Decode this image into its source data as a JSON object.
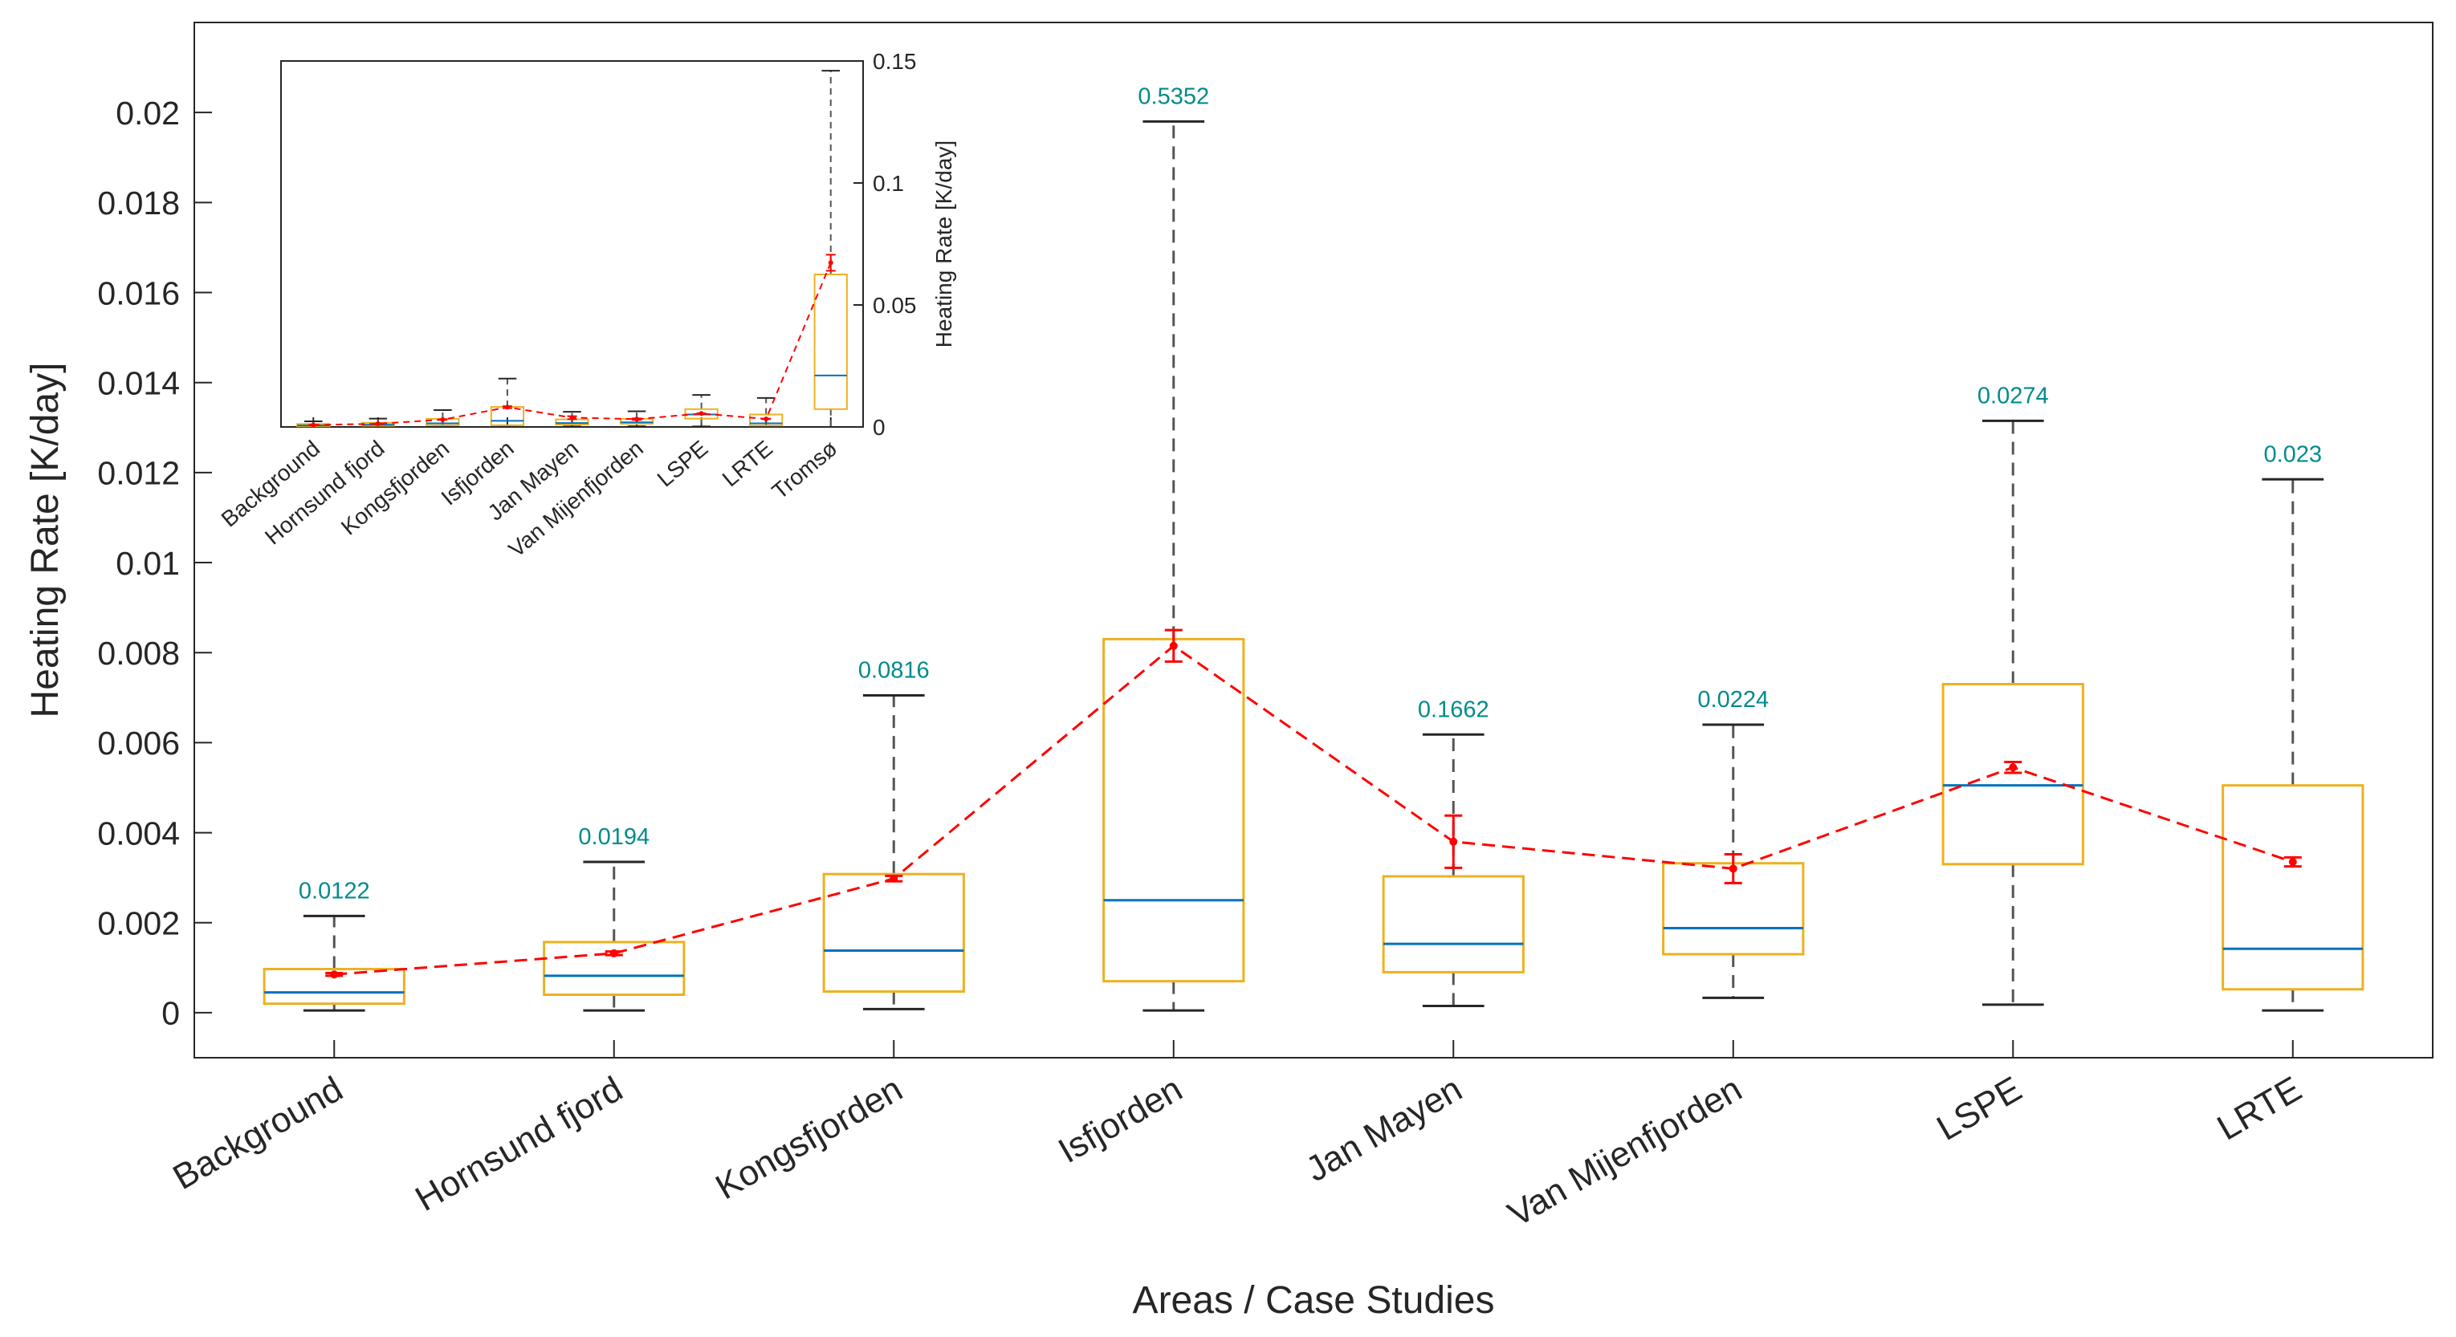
{
  "chart_data": [
    {
      "type": "box",
      "xlabel": "Areas / Case Studies",
      "ylabel": "Heating Rate [K/day]",
      "ylim": [
        -0.001,
        0.022
      ],
      "yticks": [
        "0",
        "0.002",
        "0.004",
        "0.006",
        "0.008",
        "0.01",
        "0.012",
        "0.014",
        "0.016",
        "0.018",
        "0.02"
      ],
      "grid": false,
      "categories": [
        "Background",
        "Hornsund fjord",
        "Kongsfjorden",
        "Isfjorden",
        "Jan Mayen",
        "Van Mijenfjorden",
        "LSPE",
        "LRTE"
      ],
      "boxes": [
        {
          "min": 5e-05,
          "q1": 0.0002,
          "median": 0.00045,
          "q3": 0.00097,
          "whisker_high": 0.00215,
          "max_label": "0.0122"
        },
        {
          "min": 5e-05,
          "q1": 0.0004,
          "median": 0.00082,
          "q3": 0.00157,
          "whisker_high": 0.00335,
          "max_label": "0.0194"
        },
        {
          "min": 8e-05,
          "q1": 0.00047,
          "median": 0.00138,
          "q3": 0.00308,
          "whisker_high": 0.00705,
          "max_label": "0.0816"
        },
        {
          "min": 5e-05,
          "q1": 0.0007,
          "median": 0.0025,
          "q3": 0.0083,
          "whisker_high": 0.0198,
          "max_label": "0.5352"
        },
        {
          "min": 0.00015,
          "q1": 0.0009,
          "median": 0.00153,
          "q3": 0.00303,
          "whisker_high": 0.00618,
          "max_label": "0.1662"
        },
        {
          "min": 0.00033,
          "q1": 0.0013,
          "median": 0.00188,
          "q3": 0.00332,
          "whisker_high": 0.0064,
          "max_label": "0.0224"
        },
        {
          "min": 0.00018,
          "q1": 0.0033,
          "median": 0.00505,
          "q3": 0.0073,
          "whisker_high": 0.01315,
          "max_label": "0.0274"
        },
        {
          "min": 5e-05,
          "q1": 0.00052,
          "median": 0.00142,
          "q3": 0.00505,
          "whisker_high": 0.01185,
          "max_label": "0.023"
        }
      ],
      "mean_series": {
        "style": "red dashed line with error bars",
        "values": [
          0.00085,
          0.00132,
          0.00298,
          0.00815,
          0.0038,
          0.0032,
          0.00545,
          0.00335
        ],
        "errors": [
          3e-05,
          4e-05,
          6e-05,
          0.00035,
          0.00058,
          0.00032,
          0.00012,
          0.0001
        ]
      },
      "colors": {
        "box": "#EDB120",
        "median": "#0072BD",
        "whisker": "#555555",
        "mean": "#FF0000",
        "max_label": "#008B8B"
      }
    },
    {
      "type": "box",
      "role": "inset",
      "ylabel": "Heating Rate [K/day]",
      "ylim": [
        0,
        0.15
      ],
      "yticks": [
        "0",
        "0.05",
        "0.1",
        "0.15"
      ],
      "categories": [
        "Background",
        "Hornsund fjord",
        "Kongsfjorden",
        "Isfjorden",
        "Jan Mayen",
        "Van Mijenfjorden",
        "LSPE",
        "LRTE",
        "Tromsø"
      ],
      "boxes": [
        {
          "min": 0.0,
          "q1": 0.0003,
          "median": 0.0006,
          "q3": 0.0012,
          "whisker_high": 0.0023
        },
        {
          "min": 0.0,
          "q1": 0.0005,
          "median": 0.0009,
          "q3": 0.0017,
          "whisker_high": 0.0034
        },
        {
          "min": 0.0001,
          "q1": 0.0007,
          "median": 0.0015,
          "q3": 0.0033,
          "whisker_high": 0.0069
        },
        {
          "min": 0.0001,
          "q1": 0.0007,
          "median": 0.0025,
          "q3": 0.0082,
          "whisker_high": 0.0198
        },
        {
          "min": 0.0002,
          "q1": 0.001,
          "median": 0.0016,
          "q3": 0.0031,
          "whisker_high": 0.0062
        },
        {
          "min": 0.0003,
          "q1": 0.0013,
          "median": 0.0019,
          "q3": 0.0033,
          "whisker_high": 0.0064
        },
        {
          "min": 0.0002,
          "q1": 0.0034,
          "median": 0.0051,
          "q3": 0.0073,
          "whisker_high": 0.0131
        },
        {
          "min": 0.0,
          "q1": 0.0006,
          "median": 0.0015,
          "q3": 0.0051,
          "whisker_high": 0.0119
        },
        {
          "min": 0.0,
          "q1": 0.0073,
          "median": 0.0211,
          "q3": 0.0625,
          "whisker_high": 0.146
        }
      ],
      "mean_series": {
        "values": [
          0.0008,
          0.0013,
          0.003,
          0.0081,
          0.0038,
          0.0032,
          0.0055,
          0.0033,
          0.0673
        ],
        "errors": [
          0.0001,
          0.0001,
          0.0001,
          0.0004,
          0.0006,
          0.0003,
          0.0001,
          0.0001,
          0.0033
        ]
      }
    }
  ]
}
